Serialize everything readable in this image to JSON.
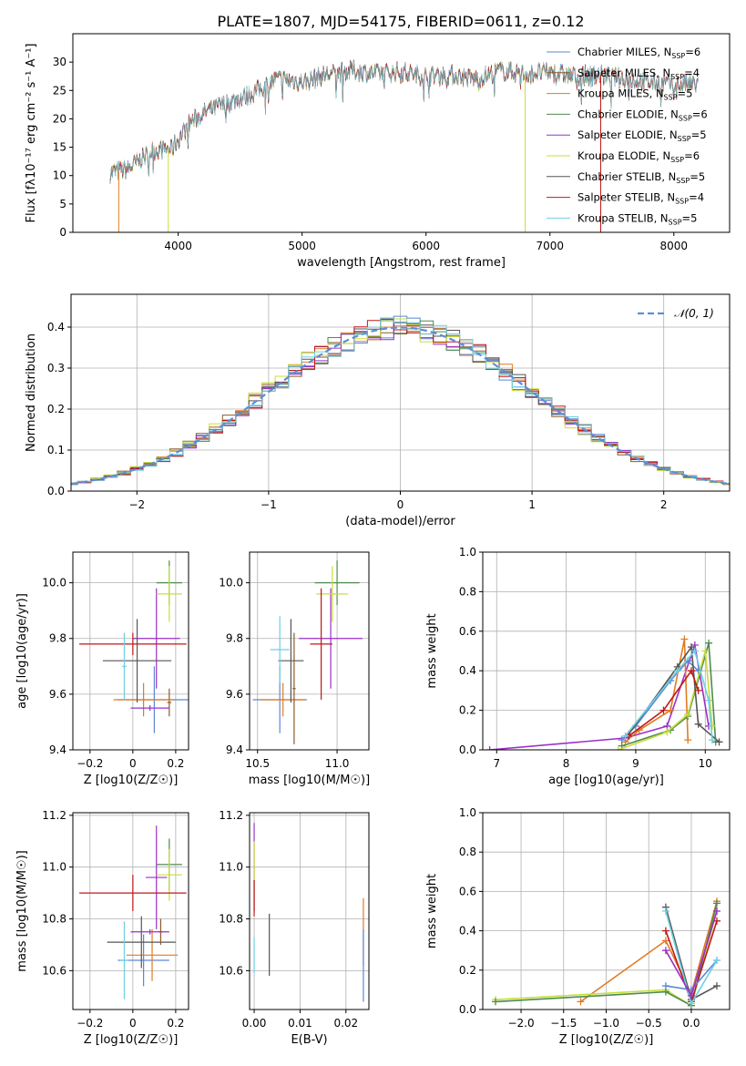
{
  "title": "PLATE=1807, MJD=54175, FIBERID=0611, z=0.12",
  "colors": {
    "Chabrier MILES": "#5b87d8",
    "Salpeter MILES": "#8b5a2b",
    "Kroupa MILES": "#e07b22",
    "Chabrier ELODIE": "#4f8a4f",
    "Salpeter ELODIE": "#9b30c8",
    "Kroupa ELODIE": "#c8dd3c",
    "Chabrier STELIB": "#555555",
    "Salpeter STELIB": "#c01818",
    "Kroupa STELIB": "#6ecfe0",
    "normal": "#5b8fd8",
    "grid": "#b0b0b0"
  },
  "chart_data": [
    {
      "id": "spectrum",
      "type": "line",
      "xlabel": "wavelength [Angstrom, rest frame]",
      "ylabel": "Flux [fλ10⁻¹⁷ erg cm⁻² s⁻¹ A⁻¹]",
      "xlim": [
        3150,
        8450
      ],
      "ylim": [
        0,
        35
      ],
      "xticks": [
        4000,
        5000,
        6000,
        7000,
        8000
      ],
      "yticks": [
        0,
        5,
        10,
        15,
        20,
        25,
        30
      ],
      "grid": false,
      "legend_position": "top-right",
      "x": [
        3450,
        3600,
        3800,
        3950,
        4100,
        4250,
        4400,
        4600,
        4800,
        5000,
        5200,
        5400,
        5600,
        5800,
        6000,
        6200,
        6400,
        6600,
        6800,
        7000,
        7200,
        7400,
        7600,
        7800,
        8000,
        8200
      ],
      "y": [
        10.5,
        11.2,
        14.5,
        14.8,
        19.5,
        21.5,
        22.8,
        24.5,
        27.0,
        26.5,
        27.8,
        28.5,
        28.0,
        28.3,
        27.5,
        27.8,
        27.0,
        28.5,
        28.0,
        28.2,
        27.5,
        27.8,
        27.0,
        26.5,
        26.0,
        26.0
      ],
      "dips": [
        {
          "x": 3520,
          "y": 0,
          "series": "Kroupa MILES"
        },
        {
          "x": 3920,
          "y": 0,
          "series": "Kroupa ELODIE"
        },
        {
          "x": 6800,
          "y": 0,
          "series": "Kroupa ELODIE"
        },
        {
          "x": 7410,
          "y": 0,
          "series": "Salpeter STELIB"
        }
      ],
      "legend": [
        "Chabrier MILES, N_SSP=6",
        "Salpeter MILES, N_SSP=4",
        "Kroupa MILES, N_SSP=5",
        "Chabrier ELODIE, N_SSP=6",
        "Salpeter ELODIE, N_SSP=5",
        "Kroupa ELODIE, N_SSP=6",
        "Chabrier STELIB, N_SSP=5",
        "Salpeter STELIB, N_SSP=4",
        "Kroupa STELIB, N_SSP=5"
      ]
    },
    {
      "id": "residuals",
      "type": "line",
      "xlabel": "(data-model)/error",
      "ylabel": "Normed distribution",
      "xlim": [
        -2.5,
        2.5
      ],
      "ylim": [
        0,
        0.48
      ],
      "xticks": [
        -2,
        -1,
        0,
        1,
        2
      ],
      "yticks": [
        0.0,
        0.1,
        0.2,
        0.3,
        0.4
      ],
      "grid": true,
      "legend": [
        "𝒩(0, 1)"
      ],
      "legend_position": "top-right"
    },
    {
      "id": "age_vs_Z",
      "type": "scatter",
      "xlabel": "Z [log10(Z/Z☉)]",
      "ylabel": "age [log10(age/yr)]",
      "xlim": [
        -0.28,
        0.26
      ],
      "ylim": [
        9.4,
        10.11
      ],
      "xticks": [
        -0.2,
        0.0,
        0.2
      ],
      "yticks": [
        9.4,
        9.6,
        9.8,
        10.0
      ],
      "grid": true,
      "points": [
        {
          "series": "Chabrier MILES",
          "x": 0.1,
          "y": 9.58,
          "xerr": 0.17,
          "yerr": 0.12
        },
        {
          "series": "Salpeter MILES",
          "x": 0.17,
          "y": 9.57,
          "xerr": 0.01,
          "yerr": 0.05
        },
        {
          "series": "Kroupa MILES",
          "x": 0.05,
          "y": 9.58,
          "xerr": 0.14,
          "yerr": 0.06
        },
        {
          "series": "Chabrier ELODIE",
          "x": 0.17,
          "y": 10.0,
          "xerr": 0.06,
          "yerr": 0.08
        },
        {
          "series": "Salpeter ELODIE",
          "x": 0.11,
          "y": 9.8,
          "xerr": 0.11,
          "yerr": 0.18
        },
        {
          "series": "Kroupa ELODIE",
          "x": 0.17,
          "y": 9.96,
          "xerr": 0.06,
          "yerr": 0.1
        },
        {
          "series": "Chabrier STELIB",
          "x": 0.02,
          "y": 9.72,
          "xerr": 0.16,
          "yerr": 0.15
        },
        {
          "series": "Salpeter STELIB",
          "x": 0.0,
          "y": 9.78,
          "xerr": 0.25,
          "yerr": 0.04
        },
        {
          "series": "Kroupa STELIB",
          "x": -0.04,
          "y": 9.7,
          "xerr": 0.01,
          "yerr": 0.12
        },
        {
          "series": "Salpeter ELODIE",
          "x": 0.08,
          "y": 9.55,
          "xerr": 0.09,
          "yerr": 0.01
        }
      ]
    },
    {
      "id": "age_vs_mass",
      "type": "scatter",
      "xlabel": "mass [log10(M/M☉)]",
      "ylabel": "",
      "xlim": [
        10.45,
        11.2
      ],
      "ylim": [
        9.4,
        10.11
      ],
      "xticks": [
        10.5,
        11.0
      ],
      "yticks": [
        9.4,
        9.6,
        9.8,
        10.0
      ],
      "grid": true,
      "points": [
        {
          "series": "Chabrier MILES",
          "x": 10.64,
          "y": 9.58,
          "xerr": 0.17,
          "yerr": 0.12
        },
        {
          "series": "Kroupa MILES",
          "x": 10.66,
          "y": 9.58,
          "xerr": 0.14,
          "yerr": 0.06
        },
        {
          "series": "Chabrier ELODIE",
          "x": 11.0,
          "y": 10.0,
          "xerr": 0.14,
          "yerr": 0.08
        },
        {
          "series": "Salpeter ELODIE",
          "x": 10.96,
          "y": 9.8,
          "xerr": 0.2,
          "yerr": 0.18
        },
        {
          "series": "Kroupa ELODIE",
          "x": 10.97,
          "y": 9.96,
          "xerr": 0.1,
          "yerr": 0.1
        },
        {
          "series": "Chabrier STELIB",
          "x": 10.71,
          "y": 9.72,
          "xerr": 0.08,
          "yerr": 0.15
        },
        {
          "series": "Salpeter STELIB",
          "x": 10.9,
          "y": 9.78,
          "xerr": 0.07,
          "yerr": 0.2
        },
        {
          "series": "Kroupa STELIB",
          "x": 10.64,
          "y": 9.76,
          "xerr": 0.06,
          "yerr": 0.12
        },
        {
          "series": "Salpeter MILES",
          "x": 10.73,
          "y": 9.62,
          "xerr": 0.01,
          "yerr": 0.2
        }
      ]
    },
    {
      "id": "massweight_vs_age",
      "type": "line",
      "xlabel": "age [log10(age/yr)]",
      "ylabel": "mass weight",
      "xlim": [
        6.8,
        10.35
      ],
      "ylim": [
        0,
        1.0
      ],
      "xticks": [
        7,
        8,
        9,
        10
      ],
      "yticks": [
        0.0,
        0.2,
        0.4,
        0.6,
        0.8,
        1.0
      ],
      "grid": true,
      "series": [
        {
          "series": "Salpeter ELODIE",
          "x": [
            6.9,
            8.85,
            9.45,
            9.85,
            10.05
          ],
          "y": [
            0.0,
            0.06,
            0.12,
            0.53,
            0.12
          ]
        },
        {
          "series": "Chabrier MILES",
          "x": [
            8.8,
            9.0,
            9.5,
            9.75,
            9.9
          ],
          "y": [
            0.05,
            0.12,
            0.35,
            0.45,
            0.4
          ]
        },
        {
          "series": "Kroupa MILES",
          "x": [
            8.85,
            9.05,
            9.5,
            9.7,
            9.75
          ],
          "y": [
            0.04,
            0.1,
            0.2,
            0.56,
            0.05
          ]
        },
        {
          "series": "Chabrier ELODIE",
          "x": [
            8.8,
            9.5,
            9.75,
            10.05,
            10.15
          ],
          "y": [
            0.02,
            0.1,
            0.17,
            0.54,
            0.04
          ]
        },
        {
          "series": "Kroupa ELODIE",
          "x": [
            8.75,
            9.45,
            9.75,
            10.0,
            10.1
          ],
          "y": [
            0.0,
            0.09,
            0.18,
            0.5,
            0.12
          ]
        },
        {
          "series": "Chabrier STELIB",
          "x": [
            8.9,
            9.6,
            9.8,
            9.9,
            10.2
          ],
          "y": [
            0.08,
            0.42,
            0.52,
            0.13,
            0.04
          ]
        },
        {
          "series": "Salpeter STELIB",
          "x": [
            8.9,
            9.4,
            9.8,
            9.9
          ],
          "y": [
            0.07,
            0.2,
            0.4,
            0.3
          ]
        },
        {
          "series": "Kroupa STELIB",
          "x": [
            8.85,
            9.6,
            9.85,
            10.05,
            10.1
          ],
          "y": [
            0.07,
            0.4,
            0.5,
            0.25,
            0.05
          ]
        }
      ]
    },
    {
      "id": "mass_vs_Z",
      "type": "scatter",
      "xlabel": "Z [log10(Z/Z☉)]",
      "ylabel": "mass [log10(M/M☉)]",
      "xlim": [
        -0.28,
        0.26
      ],
      "ylim": [
        10.45,
        11.21
      ],
      "xticks": [
        -0.2,
        0.0,
        0.2
      ],
      "yticks": [
        10.6,
        10.8,
        11.0,
        11.2
      ],
      "grid": true,
      "points": [
        {
          "series": "Chabrier MILES",
          "x": 0.05,
          "y": 10.64,
          "xerr": 0.12,
          "yerr": 0.1
        },
        {
          "series": "Kroupa MILES",
          "x": 0.09,
          "y": 10.66,
          "xerr": 0.12,
          "yerr": 0.1
        },
        {
          "series": "Chabrier ELODIE",
          "x": 0.17,
          "y": 11.01,
          "xerr": 0.06,
          "yerr": 0.1
        },
        {
          "series": "Salpeter ELODIE",
          "x": 0.11,
          "y": 10.96,
          "xerr": 0.05,
          "yerr": 0.2
        },
        {
          "series": "Kroupa ELODIE",
          "x": 0.17,
          "y": 10.97,
          "xerr": 0.06,
          "yerr": 0.1
        },
        {
          "series": "Chabrier STELIB",
          "x": 0.04,
          "y": 10.71,
          "xerr": 0.16,
          "yerr": 0.1
        },
        {
          "series": "Salpeter STELIB",
          "x": 0.0,
          "y": 10.9,
          "xerr": 0.25,
          "yerr": 0.07
        },
        {
          "series": "Kroupa STELIB",
          "x": -0.04,
          "y": 10.64,
          "xerr": 0.02,
          "yerr": 0.15
        },
        {
          "series": "Salpeter MILES",
          "x": 0.13,
          "y": 10.75,
          "xerr": 0.01,
          "yerr": 0.05
        },
        {
          "series": "Salpeter ELODIE",
          "x": 0.08,
          "y": 10.75,
          "xerr": 0.09,
          "yerr": 0.01
        }
      ]
    },
    {
      "id": "mass_vs_EBV",
      "type": "scatter",
      "xlabel": "E(B-V)",
      "ylabel": "",
      "xlim": [
        -0.001,
        0.025
      ],
      "ylim": [
        10.45,
        11.21
      ],
      "xticks": [
        0.0,
        0.01,
        0.02
      ],
      "yticks": [
        10.6,
        10.8,
        11.0,
        11.2
      ],
      "grid": true,
      "points": [
        {
          "series": "Salpeter ELODIE",
          "x": 0.0,
          "y": 11.0,
          "xerr": 0,
          "yerr": 0.17
        },
        {
          "series": "Kroupa ELODIE",
          "x": 0.0,
          "y": 10.97,
          "xerr": 0,
          "yerr": 0.13
        },
        {
          "series": "Salpeter STELIB",
          "x": 0.0,
          "y": 10.88,
          "xerr": 0,
          "yerr": 0.07
        },
        {
          "series": "Kroupa STELIB",
          "x": 0.0,
          "y": 10.66,
          "xerr": 0,
          "yerr": 0.07
        },
        {
          "series": "Chabrier STELIB",
          "x": 0.0033,
          "y": 10.7,
          "xerr": 0,
          "yerr": 0.12
        },
        {
          "series": "Kroupa MILES",
          "x": 0.0238,
          "y": 10.75,
          "xerr": 0,
          "yerr": 0.13
        },
        {
          "series": "Chabrier MILES",
          "x": 0.0238,
          "y": 10.62,
          "xerr": 0,
          "yerr": 0.14
        }
      ]
    },
    {
      "id": "massweight_vs_Z",
      "type": "line",
      "xlabel": "Z [log10(Z/Z☉)]",
      "ylabel": "mass weight",
      "xlim": [
        -2.45,
        0.45
      ],
      "ylim": [
        0,
        1.0
      ],
      "xticks": [
        -2.0,
        -1.5,
        -1.0,
        -0.5,
        0.0
      ],
      "yticks": [
        0.0,
        0.2,
        0.4,
        0.6,
        0.8,
        1.0
      ],
      "grid": true,
      "series": [
        {
          "series": "Kroupa MILES",
          "x": [
            -1.3,
            -0.3,
            0.0,
            0.3
          ],
          "y": [
            0.04,
            0.35,
            0.08,
            0.55
          ]
        },
        {
          "series": "Kroupa ELODIE",
          "x": [
            -2.3,
            -0.3,
            0.0,
            0.3
          ],
          "y": [
            0.05,
            0.1,
            0.02,
            0.5
          ]
        },
        {
          "series": "Chabrier ELODIE",
          "x": [
            -2.3,
            -0.3,
            0.0,
            0.3
          ],
          "y": [
            0.04,
            0.09,
            0.02,
            0.54
          ]
        },
        {
          "series": "Chabrier STELIB",
          "x": [
            -0.3,
            0.0,
            0.3
          ],
          "y": [
            0.52,
            0.05,
            0.12
          ]
        },
        {
          "series": "Salpeter STELIB",
          "x": [
            -0.3,
            0.0,
            0.3
          ],
          "y": [
            0.4,
            0.04,
            0.45
          ]
        },
        {
          "series": "Chabrier MILES",
          "x": [
            -0.3,
            0.0,
            0.3
          ],
          "y": [
            0.12,
            0.1,
            0.25
          ]
        },
        {
          "series": "Kroupa STELIB",
          "x": [
            -0.3,
            0.0,
            0.3
          ],
          "y": [
            0.5,
            0.03,
            0.25
          ]
        },
        {
          "series": "Salpeter ELODIE",
          "x": [
            -0.3,
            0.0,
            0.3
          ],
          "y": [
            0.3,
            0.07,
            0.5
          ]
        }
      ]
    }
  ]
}
